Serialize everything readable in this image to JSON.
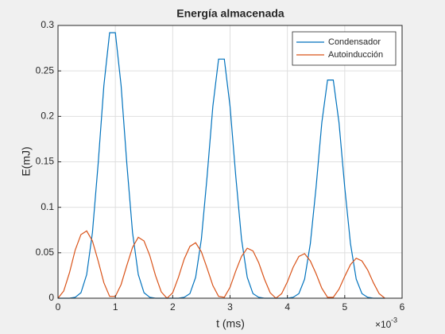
{
  "chart_data": {
    "type": "line",
    "title": "Energía almacenada",
    "x_label": "t (ms)",
    "y_label": "E(mJ)",
    "x_exponent_base": "×10",
    "x_exponent": "-3",
    "x": [
      0,
      0.1,
      0.2,
      0.3,
      0.4,
      0.5,
      0.6,
      0.7,
      0.8,
      0.9,
      1.0,
      1.1,
      1.2,
      1.3,
      1.4,
      1.5,
      1.6,
      1.7,
      1.8,
      1.9,
      2.0,
      2.1,
      2.2,
      2.3,
      2.4,
      2.5,
      2.6,
      2.7,
      2.8,
      2.9,
      3.0,
      3.1,
      3.2,
      3.3,
      3.4,
      3.5,
      3.6,
      3.7,
      3.8,
      3.9,
      4.0,
      4.1,
      4.2,
      4.3,
      4.4,
      4.5,
      4.6,
      4.7,
      4.8,
      4.9,
      5.0,
      5.1,
      5.2,
      5.3,
      5.4,
      5.5,
      5.6,
      5.7
    ],
    "series": [
      {
        "name": "Condensador",
        "color": "#0072BD",
        "values": [
          0,
          0,
          0,
          0.001,
          0.006,
          0.026,
          0.072,
          0.148,
          0.234,
          0.292,
          0.292,
          0.234,
          0.148,
          0.072,
          0.026,
          0.006,
          0.001,
          0,
          0,
          0,
          0,
          0,
          0.001,
          0.005,
          0.023,
          0.065,
          0.134,
          0.211,
          0.263,
          0.263,
          0.211,
          0.134,
          0.065,
          0.023,
          0.005,
          0.001,
          0,
          0,
          0,
          0,
          0,
          0.001,
          0.005,
          0.021,
          0.06,
          0.122,
          0.193,
          0.24,
          0.24,
          0.193,
          0.122,
          0.06,
          0.021,
          0.005,
          0.001,
          0,
          0,
          0
        ]
      },
      {
        "name": "Autoinducción",
        "color": "#D95319",
        "values": [
          0,
          0.008,
          0.028,
          0.053,
          0.07,
          0.074,
          0.063,
          0.041,
          0.017,
          0.002,
          0.002,
          0.015,
          0.036,
          0.056,
          0.067,
          0.063,
          0.047,
          0.025,
          0.007,
          0,
          0.006,
          0.023,
          0.043,
          0.057,
          0.061,
          0.051,
          0.033,
          0.014,
          0.002,
          0.001,
          0.012,
          0.03,
          0.046,
          0.055,
          0.052,
          0.039,
          0.021,
          0.006,
          0,
          0.005,
          0.018,
          0.034,
          0.046,
          0.049,
          0.041,
          0.027,
          0.011,
          0.001,
          0.001,
          0.01,
          0.024,
          0.037,
          0.044,
          0.041,
          0.031,
          0.017,
          0.005,
          0
        ]
      }
    ],
    "xlim": [
      0,
      6
    ],
    "xticks": [
      0,
      1,
      2,
      3,
      4,
      5,
      6
    ],
    "ylim": [
      0,
      0.3
    ],
    "yticks": [
      0,
      0.05,
      0.1,
      0.15,
      0.2,
      0.25,
      0.3
    ],
    "grid": true,
    "legend": "northeast"
  }
}
